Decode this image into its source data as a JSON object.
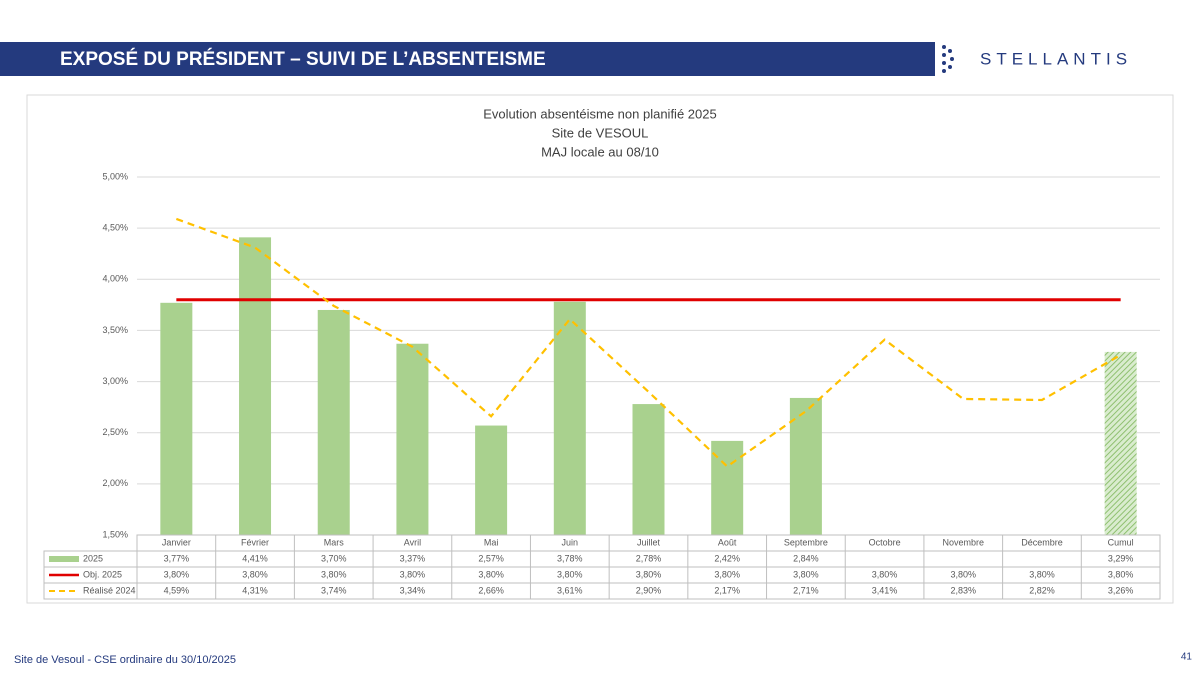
{
  "header": {
    "title": "EXPOSÉ DU PRÉSIDENT – SUIVI DE L’ABSENTEISME",
    "logo": "STELLANTIS"
  },
  "footer": {
    "text": "Site de Vesoul - CSE ordinaire du 30/10/2025",
    "page": "41"
  },
  "chart_data": {
    "type": "bar",
    "title": [
      "Evolution absentéisme non planifié 2025",
      "Site de VESOUL",
      "MAJ locale au 08/10"
    ],
    "categories": [
      "Janvier",
      "Février",
      "Mars",
      "Avril",
      "Mai",
      "Juin",
      "Juillet",
      "Août",
      "Septembre",
      "Octobre",
      "Novembre",
      "Décembre",
      "Cumul"
    ],
    "series": [
      {
        "name": "2025",
        "type": "bar",
        "color": "#a9d18e",
        "values": [
          3.77,
          4.41,
          3.7,
          3.37,
          2.57,
          3.78,
          2.78,
          2.42,
          2.84,
          null,
          null,
          null,
          3.29
        ],
        "value_labels": [
          "3,77%",
          "4,41%",
          "3,70%",
          "3,37%",
          "2,57%",
          "3,78%",
          "2,78%",
          "2,42%",
          "2,84%",
          null,
          null,
          null,
          "3,29%"
        ]
      },
      {
        "name": "Obj. 2025",
        "type": "line",
        "color": "#e00000",
        "dashed": false,
        "values": [
          3.8,
          3.8,
          3.8,
          3.8,
          3.8,
          3.8,
          3.8,
          3.8,
          3.8,
          3.8,
          3.8,
          3.8,
          3.8
        ],
        "value_labels": [
          "3,80%",
          "3,80%",
          "3,80%",
          "3,80%",
          "3,80%",
          "3,80%",
          "3,80%",
          "3,80%",
          "3,80%",
          "3,80%",
          "3,80%",
          "3,80%",
          "3,80%"
        ]
      },
      {
        "name": "Réalisé 2024",
        "type": "line",
        "color": "#ffc000",
        "dashed": true,
        "values": [
          4.59,
          4.31,
          3.74,
          3.34,
          2.66,
          3.61,
          2.9,
          2.17,
          2.71,
          3.41,
          2.83,
          2.82,
          3.26
        ],
        "value_labels": [
          "4,59%",
          "4,31%",
          "3,74%",
          "3,34%",
          "2,66%",
          "3,61%",
          "2,90%",
          "2,17%",
          "2,71%",
          "3,41%",
          "2,83%",
          "2,82%",
          "3,26%"
        ]
      }
    ],
    "ylim": [
      1.5,
      5.0
    ],
    "yticks": [
      {
        "value": 1.5,
        "label": "1,50%"
      },
      {
        "value": 2.0,
        "label": "2,00%"
      },
      {
        "value": 2.5,
        "label": "2,50%"
      },
      {
        "value": 3.0,
        "label": "3,00%"
      },
      {
        "value": 3.5,
        "label": "3,50%"
      },
      {
        "value": 4.0,
        "label": "4,00%"
      },
      {
        "value": 4.5,
        "label": "4,50%"
      },
      {
        "value": 5.0,
        "label": "5,00%"
      }
    ],
    "grid": true
  }
}
